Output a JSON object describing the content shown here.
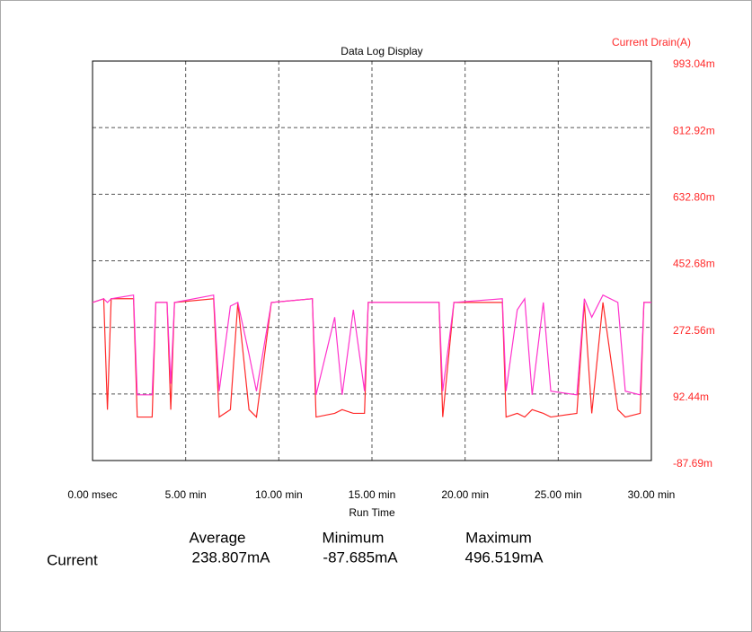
{
  "chart_data": {
    "type": "line",
    "title": "Data Log Display",
    "xlabel": "Run Time",
    "ylabel": "Current Drain(A)",
    "x": [
      0,
      0.6,
      0.8,
      1.0,
      2.2,
      2.4,
      3.2,
      3.4,
      4.0,
      4.2,
      4.4,
      6.5,
      6.8,
      7.4,
      7.8,
      8.4,
      8.8,
      9.6,
      11.8,
      12.0,
      13.0,
      13.4,
      14.0,
      14.6,
      14.8,
      18.6,
      18.8,
      19.4,
      22.0,
      22.2,
      22.8,
      23.2,
      23.6,
      24.2,
      24.6,
      26.0,
      26.4,
      26.8,
      27.4,
      28.2,
      28.6,
      29.4,
      29.6,
      30
    ],
    "series": [
      {
        "name": "Current Drain (red)",
        "color": "#ff2a2a",
        "values": [
          0.34,
          0.35,
          0.05,
          0.35,
          0.35,
          0.03,
          0.03,
          0.34,
          0.34,
          0.05,
          0.34,
          0.35,
          0.03,
          0.05,
          0.34,
          0.05,
          0.03,
          0.34,
          0.35,
          0.03,
          0.04,
          0.05,
          0.04,
          0.04,
          0.34,
          0.34,
          0.03,
          0.34,
          0.34,
          0.03,
          0.04,
          0.03,
          0.05,
          0.04,
          0.03,
          0.04,
          0.34,
          0.04,
          0.34,
          0.05,
          0.03,
          0.04,
          0.34,
          0.34
        ]
      },
      {
        "name": "Current Drain (magenta)",
        "color": "#ff33cc",
        "values": [
          0.34,
          0.35,
          0.34,
          0.35,
          0.36,
          0.09,
          0.09,
          0.34,
          0.34,
          0.12,
          0.34,
          0.36,
          0.1,
          0.33,
          0.34,
          0.2,
          0.1,
          0.34,
          0.35,
          0.09,
          0.3,
          0.09,
          0.32,
          0.1,
          0.34,
          0.34,
          0.1,
          0.34,
          0.35,
          0.1,
          0.32,
          0.35,
          0.09,
          0.34,
          0.1,
          0.09,
          0.35,
          0.3,
          0.36,
          0.34,
          0.1,
          0.09,
          0.34,
          0.34
        ]
      }
    ],
    "xlim": [
      0,
      30
    ],
    "xticks": [
      {
        "value": 0,
        "label": "0.00 msec"
      },
      {
        "value": 5,
        "label": "5.00 min"
      },
      {
        "value": 10,
        "label": "10.00 min"
      },
      {
        "value": 15,
        "label": "15.00 min"
      },
      {
        "value": 20,
        "label": "20.00 min"
      },
      {
        "value": 25,
        "label": "25.00 min"
      },
      {
        "value": 30,
        "label": "30.00 min"
      }
    ],
    "ylim": [
      -0.08769,
      0.99304
    ],
    "yticks": [
      {
        "value": 0.99304,
        "label": "993.04m"
      },
      {
        "value": 0.81292,
        "label": "812.92m"
      },
      {
        "value": 0.6328,
        "label": "632.80m"
      },
      {
        "value": 0.45268,
        "label": "452.68m"
      },
      {
        "value": 0.27256,
        "label": "272.56m"
      },
      {
        "value": 0.09244,
        "label": "92.44m"
      },
      {
        "value": -0.08769,
        "label": "-87.69m"
      }
    ],
    "grid": true
  },
  "stats": {
    "headers": [
      "Average",
      "Minimum",
      "Maximum"
    ],
    "row_label": "Current",
    "values": [
      "238.807mA",
      "-87.685mA",
      "496.519mA"
    ]
  }
}
